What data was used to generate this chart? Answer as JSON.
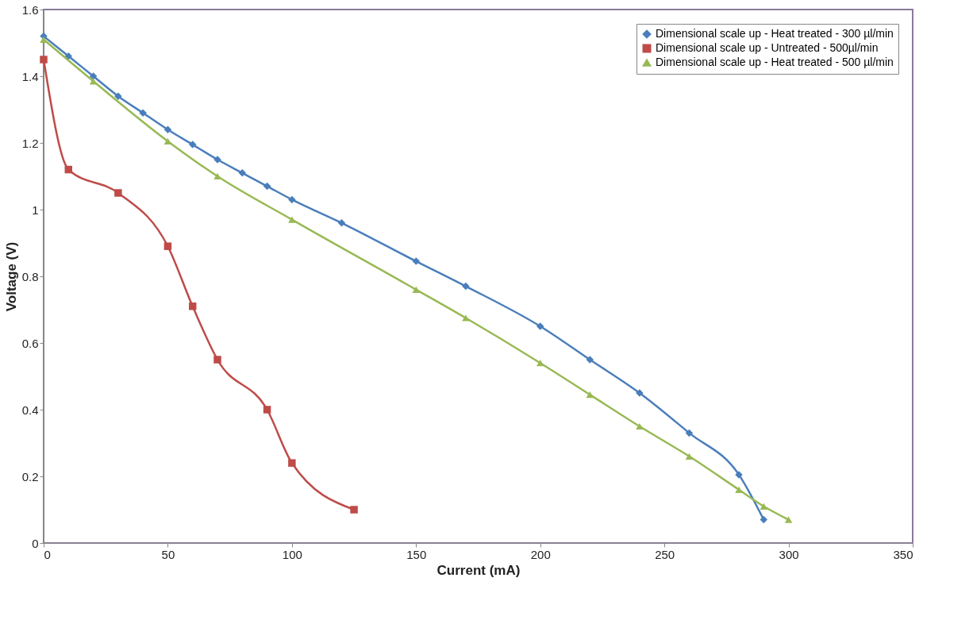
{
  "chart_data": {
    "type": "line",
    "xlabel": "Current (mA)",
    "ylabel": "Voltage (V)",
    "xlim": [
      0,
      350
    ],
    "xticks": [
      0,
      50,
      100,
      150,
      200,
      250,
      300,
      350
    ],
    "ylim": [
      0,
      1.6
    ],
    "yticks": [
      0,
      0.2,
      0.4,
      0.6,
      0.8,
      1,
      1.2,
      1.4,
      1.6
    ],
    "grid": false,
    "legend": "top right",
    "line_style": "solid",
    "series": [
      {
        "name": "Dimensional scale up - Heat treated - 300 µl/min",
        "color": "#4a7ebb",
        "marker": "diamond",
        "x": [
          0,
          10,
          20,
          30,
          40,
          50,
          60,
          70,
          80,
          90,
          100,
          120,
          150,
          170,
          200,
          220,
          240,
          260,
          280,
          290
        ],
        "values": [
          1.52,
          1.46,
          1.4,
          1.34,
          1.29,
          1.24,
          1.195,
          1.15,
          1.11,
          1.07,
          1.03,
          0.96,
          0.845,
          0.77,
          0.65,
          0.55,
          0.45,
          0.33,
          0.205,
          0.07
        ]
      },
      {
        "name": "Dimensional scale up - Untreated - 500µl/min",
        "color": "#be4b48",
        "marker": "square",
        "x": [
          0,
          10,
          30,
          50,
          60,
          70,
          90,
          100,
          125
        ],
        "values": [
          1.45,
          1.12,
          1.05,
          0.89,
          0.71,
          0.55,
          0.4,
          0.24,
          0.1
        ]
      },
      {
        "name": "Dimensional scale up - Heat treated - 500 µl/min",
        "color": "#98b954",
        "marker": "triangle",
        "x": [
          0,
          20,
          50,
          70,
          100,
          150,
          170,
          200,
          220,
          240,
          260,
          280,
          290,
          300
        ],
        "values": [
          1.51,
          1.385,
          1.205,
          1.1,
          0.97,
          0.76,
          0.675,
          0.54,
          0.445,
          0.35,
          0.26,
          0.16,
          0.11,
          0.07
        ]
      }
    ]
  }
}
